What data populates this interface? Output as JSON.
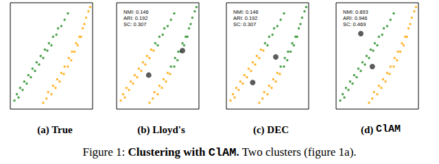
{
  "chart_data": [
    {
      "type": "scatter",
      "title": "(a) True",
      "xlim": [
        0,
        100
      ],
      "ylim": [
        0,
        100
      ],
      "tick_labels": false,
      "grid": false,
      "series": [
        {
          "color": "#228B22",
          "marker": "point",
          "values": [
            [
              5,
              8
            ],
            [
              8,
              14
            ],
            [
              10,
              11
            ],
            [
              12,
              20
            ],
            [
              15,
              18
            ],
            [
              17,
              26
            ],
            [
              20,
              24
            ],
            [
              22,
              32
            ],
            [
              25,
              30
            ],
            [
              27,
              38
            ],
            [
              30,
              36
            ],
            [
              32,
              44
            ],
            [
              35,
              42
            ],
            [
              37,
              50
            ],
            [
              40,
              48
            ],
            [
              42,
              56
            ],
            [
              45,
              55
            ],
            [
              47,
              62
            ],
            [
              50,
              60
            ],
            [
              52,
              68
            ],
            [
              56,
              70
            ],
            [
              58,
              76
            ],
            [
              62,
              78
            ],
            [
              66,
              84
            ],
            [
              70,
              90
            ]
          ]
        },
        {
          "color": "#FFA500",
          "marker": "point",
          "values": [
            [
              40,
              6
            ],
            [
              44,
              10
            ],
            [
              46,
              16
            ],
            [
              50,
              14
            ],
            [
              52,
              22
            ],
            [
              55,
              20
            ],
            [
              57,
              28
            ],
            [
              60,
              26
            ],
            [
              62,
              34
            ],
            [
              65,
              33
            ],
            [
              66,
              40
            ],
            [
              70,
              40
            ],
            [
              71,
              48
            ],
            [
              74,
              46
            ],
            [
              75,
              54
            ],
            [
              78,
              54
            ],
            [
              80,
              62
            ],
            [
              82,
              60
            ],
            [
              84,
              68
            ],
            [
              86,
              68
            ],
            [
              88,
              76
            ],
            [
              90,
              80
            ],
            [
              92,
              86
            ],
            [
              95,
              92
            ],
            [
              97,
              96
            ]
          ]
        }
      ]
    },
    {
      "type": "scatter",
      "title": "(b) Lloyd's",
      "xlim": [
        0,
        100
      ],
      "ylim": [
        0,
        100
      ],
      "tick_labels": false,
      "grid": false,
      "annotations": [
        "NMI: 0.146",
        "ARI: 0.192",
        "SC: 0.307"
      ],
      "series": [
        {
          "color": "#FFA500",
          "marker": "point",
          "values": [
            [
              5,
              8
            ],
            [
              8,
              14
            ],
            [
              10,
              11
            ],
            [
              12,
              20
            ],
            [
              15,
              18
            ],
            [
              17,
              26
            ],
            [
              20,
              24
            ],
            [
              22,
              32
            ],
            [
              25,
              30
            ],
            [
              27,
              38
            ],
            [
              30,
              36
            ],
            [
              32,
              44
            ],
            [
              35,
              42
            ],
            [
              37,
              50
            ],
            [
              40,
              48
            ],
            [
              42,
              56
            ],
            [
              45,
              55
            ],
            [
              40,
              6
            ],
            [
              44,
              10
            ],
            [
              46,
              16
            ],
            [
              50,
              14
            ],
            [
              52,
              22
            ],
            [
              55,
              20
            ],
            [
              57,
              28
            ],
            [
              60,
              26
            ],
            [
              62,
              34
            ],
            [
              65,
              33
            ]
          ]
        },
        {
          "color": "#228B22",
          "marker": "point",
          "values": [
            [
              47,
              62
            ],
            [
              50,
              60
            ],
            [
              52,
              68
            ],
            [
              56,
              70
            ],
            [
              58,
              76
            ],
            [
              62,
              78
            ],
            [
              66,
              84
            ],
            [
              70,
              90
            ],
            [
              66,
              40
            ],
            [
              70,
              40
            ],
            [
              71,
              48
            ],
            [
              74,
              46
            ],
            [
              75,
              54
            ],
            [
              78,
              54
            ],
            [
              80,
              62
            ],
            [
              82,
              60
            ],
            [
              84,
              68
            ],
            [
              86,
              68
            ],
            [
              88,
              76
            ],
            [
              90,
              80
            ],
            [
              92,
              86
            ],
            [
              95,
              92
            ],
            [
              97,
              96
            ]
          ]
        },
        {
          "color": "#333333",
          "marker": "circle",
          "values": [
            [
              39,
              32
            ],
            [
              80,
              55
            ]
          ]
        }
      ]
    },
    {
      "type": "scatter",
      "title": "(c) DEC",
      "xlim": [
        0,
        100
      ],
      "ylim": [
        0,
        100
      ],
      "tick_labels": false,
      "grid": false,
      "annotations": [
        "NMI: 0.146",
        "ARI: 0.192",
        "SC: 0.307"
      ],
      "series": [
        {
          "color": "#FFA500",
          "marker": "point",
          "values": [
            [
              5,
              8
            ],
            [
              8,
              14
            ],
            [
              10,
              11
            ],
            [
              12,
              20
            ],
            [
              15,
              18
            ],
            [
              17,
              26
            ],
            [
              20,
              24
            ],
            [
              22,
              32
            ],
            [
              25,
              30
            ],
            [
              27,
              38
            ],
            [
              30,
              36
            ],
            [
              32,
              44
            ],
            [
              35,
              42
            ],
            [
              37,
              50
            ],
            [
              40,
              48
            ],
            [
              42,
              56
            ],
            [
              45,
              55
            ],
            [
              40,
              6
            ],
            [
              44,
              10
            ],
            [
              46,
              16
            ],
            [
              50,
              14
            ],
            [
              52,
              22
            ],
            [
              55,
              20
            ],
            [
              57,
              28
            ],
            [
              60,
              26
            ],
            [
              62,
              34
            ],
            [
              65,
              33
            ]
          ]
        },
        {
          "color": "#228B22",
          "marker": "point",
          "values": [
            [
              47,
              62
            ],
            [
              50,
              60
            ],
            [
              52,
              68
            ],
            [
              56,
              70
            ],
            [
              58,
              76
            ],
            [
              62,
              78
            ],
            [
              66,
              84
            ],
            [
              70,
              90
            ],
            [
              66,
              40
            ],
            [
              70,
              40
            ],
            [
              71,
              48
            ],
            [
              74,
              46
            ],
            [
              75,
              54
            ],
            [
              78,
              54
            ],
            [
              80,
              62
            ],
            [
              82,
              60
            ],
            [
              84,
              68
            ],
            [
              86,
              68
            ],
            [
              88,
              76
            ],
            [
              90,
              80
            ],
            [
              92,
              86
            ],
            [
              95,
              92
            ],
            [
              97,
              96
            ]
          ]
        },
        {
          "color": "#333333",
          "marker": "circle",
          "values": [
            [
              32,
              25
            ],
            [
              60,
              49
            ]
          ]
        }
      ]
    },
    {
      "type": "scatter",
      "title": "(d) ",
      "title_code": "ClAM",
      "xlim": [
        0,
        100
      ],
      "ylim": [
        0,
        100
      ],
      "tick_labels": false,
      "grid": false,
      "annotations": [
        "NMI: 0.893",
        "ARI: 0.946",
        "SC: 0.469"
      ],
      "series": [
        {
          "color": "#228B22",
          "marker": "point",
          "values": [
            [
              5,
              8
            ],
            [
              8,
              14
            ],
            [
              10,
              11
            ],
            [
              12,
              20
            ],
            [
              15,
              18
            ],
            [
              17,
              26
            ],
            [
              20,
              24
            ],
            [
              22,
              32
            ],
            [
              25,
              30
            ],
            [
              27,
              38
            ],
            [
              30,
              36
            ],
            [
              32,
              44
            ],
            [
              35,
              42
            ],
            [
              37,
              50
            ],
            [
              40,
              48
            ],
            [
              42,
              56
            ],
            [
              45,
              55
            ],
            [
              47,
              62
            ],
            [
              50,
              60
            ],
            [
              52,
              68
            ],
            [
              56,
              70
            ],
            [
              58,
              76
            ],
            [
              62,
              78
            ],
            [
              66,
              84
            ],
            [
              70,
              90
            ]
          ]
        },
        {
          "color": "#FFA500",
          "marker": "point",
          "values": [
            [
              40,
              6
            ],
            [
              44,
              10
            ],
            [
              46,
              16
            ],
            [
              50,
              14
            ],
            [
              52,
              22
            ],
            [
              55,
              20
            ],
            [
              57,
              28
            ],
            [
              60,
              26
            ],
            [
              62,
              34
            ],
            [
              65,
              33
            ],
            [
              66,
              40
            ],
            [
              70,
              40
            ],
            [
              71,
              48
            ],
            [
              74,
              46
            ],
            [
              75,
              54
            ],
            [
              78,
              54
            ],
            [
              80,
              62
            ],
            [
              82,
              60
            ],
            [
              84,
              68
            ],
            [
              86,
              68
            ],
            [
              88,
              76
            ],
            [
              90,
              80
            ],
            [
              92,
              86
            ],
            [
              95,
              92
            ],
            [
              97,
              96
            ]
          ]
        },
        {
          "color": "#333333",
          "marker": "circle",
          "values": [
            [
              30,
              71
            ],
            [
              44,
              40
            ]
          ]
        }
      ]
    }
  ],
  "figure_caption": {
    "label": "Figure 1: ",
    "bold": "Clustering with ",
    "code": "ClAM",
    "bold_end": ".",
    "rest": " Two clusters (figure 1a)."
  }
}
